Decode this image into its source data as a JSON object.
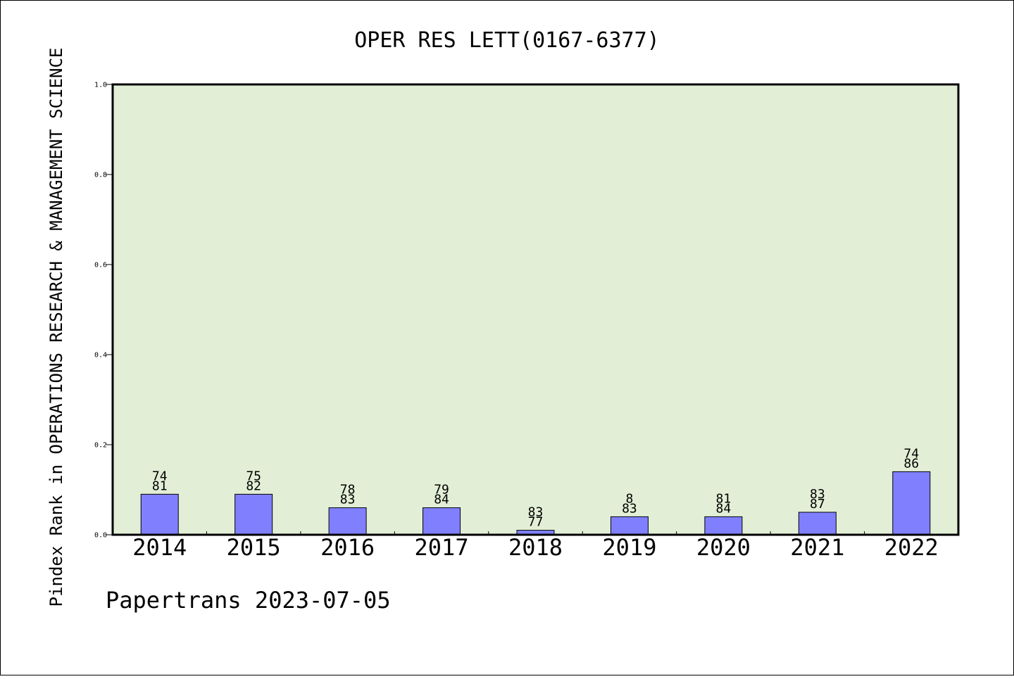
{
  "chart_data": {
    "type": "bar",
    "title": "OPER RES LETT(0167-6377)",
    "ylabel": "Pindex Rank in OPERATIONS RESEARCH & MANAGEMENT SCIENCE",
    "xlabel": "",
    "footer": "Papertrans 2023-07-05",
    "categories": [
      "2014",
      "2015",
      "2016",
      "2017",
      "2018",
      "2019",
      "2020",
      "2021",
      "2022"
    ],
    "values": [
      0.09,
      0.09,
      0.06,
      0.06,
      0.01,
      0.04,
      0.04,
      0.05,
      0.14
    ],
    "labels_top": [
      "74",
      "75",
      "78",
      "79",
      "83",
      "8",
      "81",
      "83",
      "74"
    ],
    "labels_bottom": [
      "81",
      "82",
      "83",
      "84",
      "77",
      "83",
      "84",
      "87",
      "86"
    ],
    "ylim": [
      0,
      1.0
    ],
    "yticks": [
      "0.0",
      "0.2",
      "0.4",
      "0.6",
      "0.8",
      "1.0"
    ],
    "grid": false,
    "colors": {
      "bar_fill": "#8080ff",
      "plot_background": "#e2efd6",
      "frame": "#000000"
    }
  }
}
